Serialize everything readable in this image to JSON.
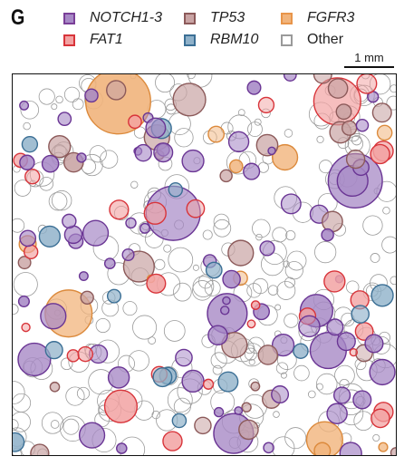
{
  "panel": {
    "letter": "G"
  },
  "legend": {
    "items": [
      {
        "label": "NOTCH1-3",
        "italic": true,
        "color": "#7a3f98"
      },
      {
        "label": "TP53",
        "italic": true,
        "color": "#8c5a5a"
      },
      {
        "label": "FGFR3",
        "italic": true,
        "color": "#e8954a"
      },
      {
        "label": "FAT1",
        "italic": true,
        "color": "#d8343a"
      },
      {
        "label": "RBM10",
        "italic": true,
        "color": "#3b6f95"
      },
      {
        "label": "Other",
        "italic": false,
        "color": "#9a9a9a"
      }
    ]
  },
  "scalebar": {
    "label": "1 mm"
  },
  "colors": {
    "notch_fill": "#a789c6",
    "notch_stroke": "#6a3594",
    "tp53_fill": "#c9a4a4",
    "tp53_stroke": "#8c5a5a",
    "fgfr3_fill": "#f1b47c",
    "fgfr3_stroke": "#dc8a3c",
    "fat1_fill": "#f2a2a2",
    "fat1_stroke": "#d8343a",
    "rbm10_fill": "#8fb1c9",
    "rbm10_stroke": "#3b6f95",
    "other_stroke": "#9a9a9a",
    "frame": "#111111"
  }
}
